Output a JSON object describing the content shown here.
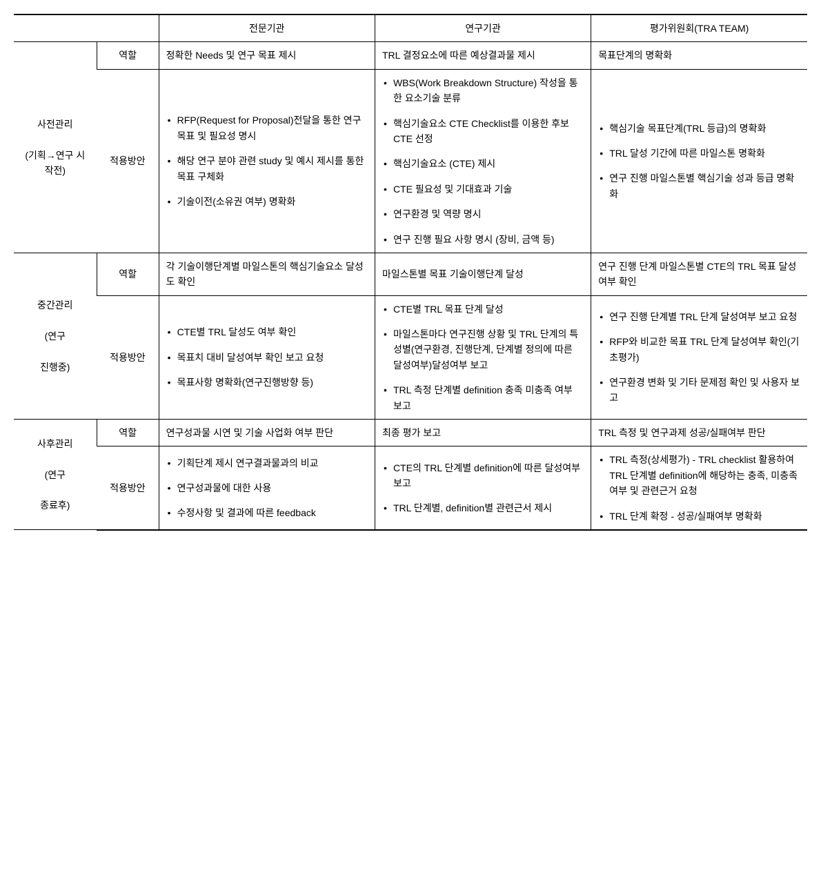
{
  "headers": {
    "blank": "",
    "col1": "전문기관",
    "col2": "연구기관",
    "col3": "평가위원회(TRA TEAM)"
  },
  "rowLabels": {
    "role": "역할",
    "method": "적용방안"
  },
  "phases": {
    "pre": {
      "title": "사전관리",
      "sub": "(기획→연구 시작전)"
    },
    "mid": {
      "title": "중간관리",
      "sub1": "(연구",
      "sub2": "진행중)"
    },
    "post": {
      "title": "사후관리",
      "sub1": "(연구",
      "sub2": "종료후)"
    }
  },
  "pre": {
    "role": {
      "c1": "정확한 Needs 및 연구 목표 제시",
      "c2": "TRL 결정요소에 따른 예상결과물 제시",
      "c3": "목표단계의 명확화"
    },
    "method": {
      "c1": [
        "RFP(Request for Proposal)전달을 통한 연구 목표 및 필요성 명시",
        "해당 연구 분야 관련 study 및 예시 제시를 통한 목표 구체화",
        "기술이전(소유권 여부) 명확화"
      ],
      "c2": [
        "WBS(Work Breakdown Structure) 작성을 통한 요소기술 분류",
        "핵심기술요소 CTE Checklist를 이용한 후보 CTE 선정",
        "핵심기술요소 (CTE) 제시",
        "CTE 필요성 및 기대효과 기술",
        "연구환경 및 역량 명시",
        "연구 진행 필요 사항 명시 (장비, 금액 등)"
      ],
      "c3": [
        "핵심기술 목표단계(TRL 등급)의 명확화",
        "TRL 달성 기간에 따른 마일스톤 명확화",
        "연구 진행 마일스톤별 핵심기술 성과 등급 명확화"
      ]
    }
  },
  "mid": {
    "role": {
      "c1": "각 기술이행단계별 마일스톤의 핵심기술요소 달성도 확인",
      "c2": "마일스톤별 목표 기술이행단계  달성",
      "c3": "연구 진행 단계 마일스톤별 CTE의 TRL 목표 달성여부 확인"
    },
    "method": {
      "c1": [
        "CTE별 TRL 달성도 여부 확인",
        "목표치 대비 달성여부 확인 보고 요청",
        "목표사항 명확화(연구진행방향 등)"
      ],
      "c2": [
        "CTE별 TRL 목표 단계 달성",
        "마일스톤마다 연구진행 상황 및 TRL 단계의 특성별(연구환경, 진행단계, 단계별 정의에 따른 달성여부)달성여부 보고",
        "TRL 측정 단계별 definition 충족 미충족 여부 보고"
      ],
      "c3": [
        "연구 진행 단계별 TRL 단계 달성여부 보고 요청",
        "RFP와 비교한 목표 TRL 단계 달성여부 확인(기초평가)",
        "연구환경 변화 및 기타 문제점 확인 및 사용자 보고"
      ]
    }
  },
  "post": {
    "role": {
      "c1": "연구성과물 시연 및 기술 사업화 여부 판단",
      "c2": "최종 평가 보고",
      "c3": "TRL 측정 및 연구과제 성공/실패여부 판단"
    },
    "method": {
      "c1": [
        "기획단계 제시 연구결과물과의 비교",
        "연구성과물에 대한 사용",
        "수정사항 및 결과에 따른 feedback"
      ],
      "c2": [
        "CTE의 TRL 단계별 definition에 따른 달성여부 보고",
        "TRL 단계별, definition별 관련근서 제시"
      ],
      "c3": [
        "TRL 측정(상세평가) - TRL checklist 활용하여 TRL 단계별 definition에 해당하는 충족, 미충족 여부  및 관련근거 요청",
        "TRL 단계 확정 - 성공/실패여부 명확화"
      ]
    }
  }
}
